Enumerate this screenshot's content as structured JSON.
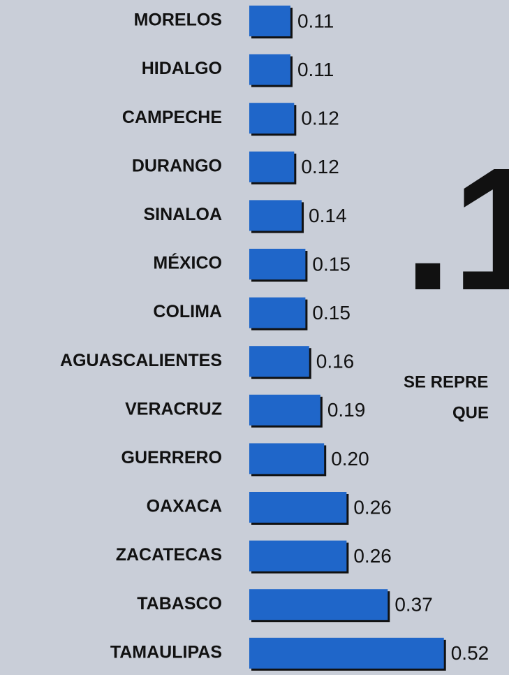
{
  "chart_data": {
    "type": "bar",
    "orientation": "horizontal",
    "categories": [
      "MORELOS",
      "HIDALGO",
      "CAMPECHE",
      "DURANGO",
      "SINALOA",
      "MÉXICO",
      "COLIMA",
      "AGUASCALIENTES",
      "VERACRUZ",
      "GUERRERO",
      "OAXACA",
      "ZACATECAS",
      "TABASCO",
      "TAMAULIPAS"
    ],
    "values": [
      0.11,
      0.11,
      0.12,
      0.12,
      0.14,
      0.15,
      0.15,
      0.16,
      0.19,
      0.2,
      0.26,
      0.26,
      0.37,
      0.52
    ],
    "value_labels": [
      "0.11",
      "0.11",
      "0.12",
      "0.12",
      "0.14",
      "0.15",
      "0.15",
      "0.16",
      "0.19",
      "0.20",
      "0.26",
      "0.26",
      "0.37",
      "0.52"
    ],
    "color": "#1f66c9",
    "annotations": [
      ".1",
      "SE REPRE",
      "QUE"
    ]
  }
}
